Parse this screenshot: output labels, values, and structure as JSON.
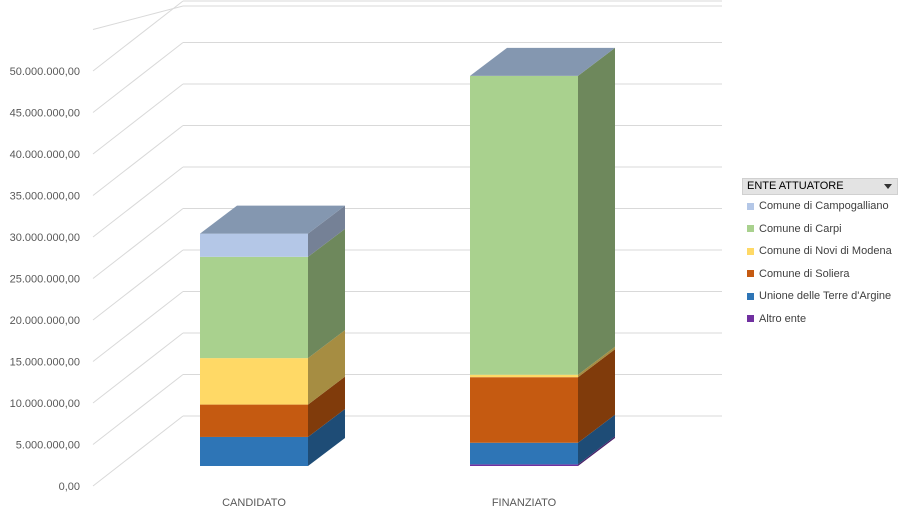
{
  "chart_data": {
    "type": "bar",
    "stacked": true,
    "three_d": true,
    "categories": [
      "CANDIDATO",
      "FINANZIATO"
    ],
    "ylim": [
      0,
      50000000
    ],
    "yticks": [
      "0,00",
      "5.000.000,00",
      "10.000.000,00",
      "15.000.000,00",
      "20.000.000,00",
      "25.000.000,00",
      "30.000.000,00",
      "35.000.000,00",
      "40.000.000,00",
      "45.000.000,00",
      "50.000.000,00"
    ],
    "grid": true,
    "legend_position": "right",
    "legend_title": "ENTE ATTUATORE",
    "series": [
      {
        "name": "Altro ente",
        "color": "#7030a0",
        "values": [
          0,
          200000
        ]
      },
      {
        "name": "Unione delle Terre d'Argine",
        "color": "#2e75b6",
        "values": [
          3500000,
          2600000
        ]
      },
      {
        "name": "Comune di Soliera",
        "color": "#c55a11",
        "values": [
          3900000,
          7900000
        ]
      },
      {
        "name": "Comune di Novi di Modena",
        "color": "#ffd966",
        "values": [
          5600000,
          300000
        ]
      },
      {
        "name": "Comune di Carpi",
        "color": "#a9d18e",
        "values": [
          12200000,
          36000000
        ]
      },
      {
        "name": "Comune di Campogalliano",
        "color": "#b4c7e7",
        "values": [
          2800000,
          0
        ]
      }
    ]
  }
}
